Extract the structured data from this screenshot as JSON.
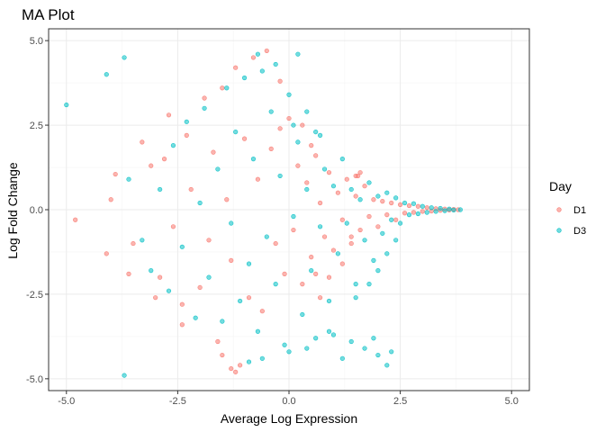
{
  "chart_data": {
    "type": "scatter",
    "title": "MA Plot",
    "xlabel": "Average Log Expression",
    "ylabel": "Log Fold Change",
    "xlim": [
      -5.4,
      5.4
    ],
    "ylim": [
      -5.35,
      5.35
    ],
    "x_ticks": [
      -5.0,
      -2.5,
      0.0,
      2.5,
      5.0
    ],
    "x_tick_labels": [
      "-5.0",
      "-2.5",
      "0.0",
      "2.5",
      "5.0"
    ],
    "y_ticks": [
      -5.0,
      -2.5,
      0.0,
      2.5,
      5.0
    ],
    "y_tick_labels": [
      "-5.0",
      "-2.5",
      "0.0",
      "2.5",
      "5.0"
    ],
    "grid": true,
    "legend": {
      "title": "Day",
      "placement": "right",
      "entries": [
        {
          "label": "D1",
          "color": "#F8766D"
        },
        {
          "label": "D3",
          "color": "#00BFC4"
        }
      ]
    },
    "point_style": {
      "opacity": 0.55
    },
    "series": [
      {
        "name": "D1",
        "color": "#F8766D",
        "points": [
          [
            -4.8,
            -0.3
          ],
          [
            -4.1,
            -1.3
          ],
          [
            -3.9,
            1.05
          ],
          [
            -3.6,
            -1.9
          ],
          [
            -3.3,
            2.0
          ],
          [
            -3.1,
            1.3
          ],
          [
            -2.9,
            -2.0
          ],
          [
            -2.7,
            2.8
          ],
          [
            -2.6,
            -0.5
          ],
          [
            -2.4,
            -3.4
          ],
          [
            -2.3,
            2.2
          ],
          [
            -2.2,
            0.6
          ],
          [
            -2.0,
            -2.3
          ],
          [
            -1.9,
            3.3
          ],
          [
            -1.8,
            -0.9
          ],
          [
            -1.7,
            1.7
          ],
          [
            -1.6,
            -3.9
          ],
          [
            -1.5,
            3.6
          ],
          [
            -1.4,
            0.3
          ],
          [
            -1.3,
            -1.5
          ],
          [
            -1.2,
            4.2
          ],
          [
            -1.1,
            -4.6
          ],
          [
            -1.0,
            2.1
          ],
          [
            -0.9,
            -2.6
          ],
          [
            -0.8,
            4.5
          ],
          [
            -0.7,
            0.9
          ],
          [
            -0.6,
            -3.0
          ],
          [
            -0.5,
            4.7
          ],
          [
            -0.4,
            1.8
          ],
          [
            -0.3,
            -1.0
          ],
          [
            -0.2,
            3.8
          ],
          [
            -0.1,
            -1.9
          ],
          [
            0.0,
            2.7
          ],
          [
            0.1,
            -0.6
          ],
          [
            0.2,
            1.3
          ],
          [
            0.3,
            -2.2
          ],
          [
            0.4,
            0.8
          ],
          [
            0.5,
            -1.4
          ],
          [
            0.6,
            1.6
          ],
          [
            0.7,
            0.2
          ],
          [
            0.8,
            -0.8
          ],
          [
            0.9,
            1.1
          ],
          [
            1.0,
            -1.2
          ],
          [
            1.1,
            0.5
          ],
          [
            1.2,
            -0.3
          ],
          [
            1.3,
            0.9
          ],
          [
            1.4,
            -1.0
          ],
          [
            1.5,
            0.4
          ],
          [
            1.6,
            -0.6
          ],
          [
            1.7,
            0.7
          ],
          [
            1.8,
            -0.2
          ],
          [
            1.9,
            0.3
          ],
          [
            2.0,
            -0.5
          ],
          [
            2.1,
            0.25
          ],
          [
            2.2,
            -0.15
          ],
          [
            2.3,
            0.2
          ],
          [
            2.4,
            -0.3
          ],
          [
            2.5,
            0.15
          ],
          [
            2.6,
            -0.1
          ],
          [
            2.7,
            0.12
          ],
          [
            2.8,
            -0.08
          ],
          [
            2.9,
            0.1
          ],
          [
            3.0,
            -0.05
          ],
          [
            3.1,
            0.06
          ],
          [
            3.2,
            -0.04
          ],
          [
            3.3,
            0.03
          ],
          [
            3.4,
            -0.02
          ],
          [
            3.5,
            0.02
          ],
          [
            3.6,
            -0.01
          ],
          [
            3.7,
            0.01
          ],
          [
            3.8,
            0.0
          ],
          [
            1.5,
            1.0
          ],
          [
            1.6,
            1.1
          ],
          [
            1.55,
            1.0
          ],
          [
            0.5,
            1.9
          ],
          [
            0.3,
            2.5
          ],
          [
            -0.2,
            2.4
          ],
          [
            0.6,
            -1.9
          ],
          [
            0.7,
            -2.6
          ],
          [
            0.9,
            -2.0
          ],
          [
            1.2,
            -1.6
          ],
          [
            1.4,
            -0.8
          ],
          [
            -1.3,
            -4.7
          ],
          [
            -1.5,
            -4.3
          ],
          [
            -1.2,
            -4.8
          ],
          [
            -2.4,
            -2.8
          ],
          [
            -3.0,
            -2.6
          ],
          [
            -2.8,
            1.5
          ],
          [
            -3.5,
            -1.0
          ],
          [
            -4.0,
            0.3
          ]
        ]
      },
      {
        "name": "D3",
        "color": "#00BFC4",
        "points": [
          [
            -5.0,
            3.1
          ],
          [
            -4.1,
            4.0
          ],
          [
            -3.7,
            4.5
          ],
          [
            -3.7,
            -4.9
          ],
          [
            -3.6,
            0.9
          ],
          [
            -3.3,
            -0.9
          ],
          [
            -3.1,
            -1.8
          ],
          [
            -2.9,
            0.6
          ],
          [
            -2.7,
            -2.4
          ],
          [
            -2.6,
            1.9
          ],
          [
            -2.4,
            -1.1
          ],
          [
            -2.3,
            2.6
          ],
          [
            -2.1,
            -3.2
          ],
          [
            -2.0,
            0.2
          ],
          [
            -1.9,
            3.0
          ],
          [
            -1.8,
            -2.0
          ],
          [
            -1.6,
            1.2
          ],
          [
            -1.5,
            -3.3
          ],
          [
            -1.4,
            3.6
          ],
          [
            -1.3,
            -0.4
          ],
          [
            -1.2,
            2.3
          ],
          [
            -1.1,
            -2.7
          ],
          [
            -1.0,
            3.9
          ],
          [
            -0.9,
            -1.6
          ],
          [
            -0.8,
            1.5
          ],
          [
            -0.7,
            -3.6
          ],
          [
            -0.6,
            4.1
          ],
          [
            -0.5,
            -0.8
          ],
          [
            -0.4,
            2.9
          ],
          [
            -0.3,
            -2.2
          ],
          [
            -0.2,
            1.0
          ],
          [
            -0.1,
            -4.0
          ],
          [
            0.0,
            3.4
          ],
          [
            0.1,
            -0.2
          ],
          [
            0.2,
            2.0
          ],
          [
            0.3,
            -3.1
          ],
          [
            0.4,
            0.6
          ],
          [
            0.5,
            -1.8
          ],
          [
            0.6,
            2.3
          ],
          [
            0.7,
            -0.5
          ],
          [
            0.8,
            1.2
          ],
          [
            0.9,
            -2.7
          ],
          [
            1.0,
            0.7
          ],
          [
            1.1,
            -1.3
          ],
          [
            1.2,
            1.5
          ],
          [
            1.3,
            -0.4
          ],
          [
            1.4,
            0.6
          ],
          [
            1.5,
            -2.2
          ],
          [
            1.6,
            0.3
          ],
          [
            1.7,
            -0.9
          ],
          [
            1.8,
            0.8
          ],
          [
            1.9,
            -1.5
          ],
          [
            2.0,
            0.4
          ],
          [
            2.1,
            -0.7
          ],
          [
            2.2,
            0.5
          ],
          [
            2.3,
            -0.3
          ],
          [
            2.4,
            0.35
          ],
          [
            2.5,
            -0.4
          ],
          [
            2.6,
            0.2
          ],
          [
            2.7,
            -0.15
          ],
          [
            2.8,
            0.18
          ],
          [
            2.9,
            -0.12
          ],
          [
            3.0,
            0.1
          ],
          [
            3.1,
            -0.08
          ],
          [
            3.2,
            0.06
          ],
          [
            3.3,
            -0.05
          ],
          [
            3.4,
            0.04
          ],
          [
            3.5,
            -0.03
          ],
          [
            3.6,
            0.02
          ],
          [
            3.7,
            -0.01
          ],
          [
            3.85,
            0.0
          ],
          [
            -0.7,
            4.6
          ],
          [
            -0.3,
            4.3
          ],
          [
            0.2,
            4.6
          ],
          [
            -0.9,
            -4.5
          ],
          [
            -0.6,
            -4.4
          ],
          [
            0.0,
            -4.2
          ],
          [
            0.4,
            -4.1
          ],
          [
            0.6,
            -3.8
          ],
          [
            1.0,
            -3.7
          ],
          [
            1.2,
            -4.4
          ],
          [
            1.4,
            -3.9
          ],
          [
            1.7,
            -4.1
          ],
          [
            2.0,
            -4.3
          ],
          [
            2.2,
            -4.6
          ],
          [
            2.3,
            -4.2
          ],
          [
            1.9,
            -3.8
          ],
          [
            0.9,
            -3.6
          ],
          [
            1.5,
            -2.6
          ],
          [
            1.8,
            -2.2
          ],
          [
            2.0,
            -1.8
          ],
          [
            2.2,
            -1.3
          ],
          [
            2.4,
            -0.9
          ],
          [
            0.1,
            2.5
          ],
          [
            0.4,
            2.9
          ],
          [
            0.7,
            2.2
          ]
        ]
      }
    ]
  }
}
